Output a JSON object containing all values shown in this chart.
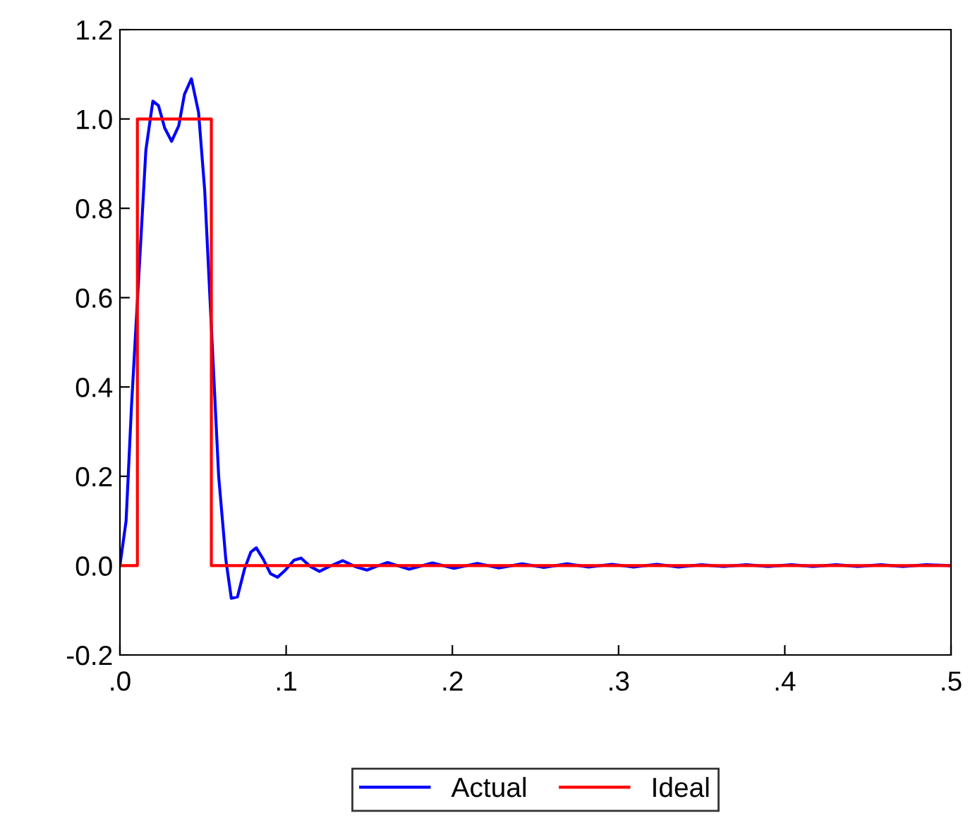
{
  "chart_data": {
    "type": "line",
    "xlim": [
      0,
      0.5
    ],
    "ylim": [
      -0.2,
      1.2
    ],
    "xticks": [
      {
        "value": 0,
        "label": ".0"
      },
      {
        "value": 0.1,
        "label": ".1"
      },
      {
        "value": 0.2,
        "label": ".2"
      },
      {
        "value": 0.3,
        "label": ".3"
      },
      {
        "value": 0.4,
        "label": ".4"
      },
      {
        "value": 0.5,
        "label": ".5"
      }
    ],
    "yticks": [
      {
        "value": -0.2,
        "label": "-0.2"
      },
      {
        "value": 0,
        "label": "0.0"
      },
      {
        "value": 0.2,
        "label": "0.2"
      },
      {
        "value": 0.4,
        "label": "0.4"
      },
      {
        "value": 0.6,
        "label": "0.6"
      },
      {
        "value": 0.8,
        "label": "0.8"
      },
      {
        "value": 1.0,
        "label": "1.0"
      },
      {
        "value": 1.2,
        "label": "1.2"
      }
    ],
    "grid": false,
    "legend": "bottom",
    "line_style": "solid",
    "marker": "none",
    "series": [
      {
        "name": "Actual",
        "color": "#0000ff",
        "x": [
          0,
          0.0037,
          0.007,
          0.0156,
          0.0198,
          0.0232,
          0.0269,
          0.0311,
          0.0354,
          0.0388,
          0.043,
          0.0473,
          0.051,
          0.0552,
          0.0594,
          0.0637,
          0.067,
          0.0707,
          0.075,
          0.0787,
          0.082,
          0.0863,
          0.0906,
          0.0948,
          0.099,
          0.1047,
          0.109,
          0.1146,
          0.12,
          0.126,
          0.134,
          0.1415,
          0.1486,
          0.1556,
          0.161,
          0.174,
          0.188,
          0.201,
          0.215,
          0.228,
          0.242,
          0.255,
          0.269,
          0.282,
          0.296,
          0.309,
          0.323,
          0.336,
          0.35,
          0.363,
          0.377,
          0.39,
          0.404,
          0.417,
          0.431,
          0.444,
          0.458,
          0.471,
          0.485,
          0.5
        ],
        "values": [
          0,
          0.1,
          0.36,
          0.93,
          1.04,
          1.03,
          0.98,
          0.95,
          0.985,
          1.055,
          1.09,
          1.015,
          0.84,
          0.52,
          0.2,
          0.014,
          -0.073,
          -0.07,
          -0.007,
          0.03,
          0.04,
          0.014,
          -0.018,
          -0.026,
          -0.012,
          0.012,
          0.017,
          -0.002,
          -0.013,
          -0.002,
          0.011,
          -0.002,
          -0.01,
          0,
          0.007,
          -0.008,
          0.006,
          -0.006,
          0.005,
          -0.005,
          0.004,
          -0.004,
          0.004,
          -0.003,
          0.003,
          -0.003,
          0.003,
          -0.003,
          0.002,
          -0.002,
          0.002,
          -0.002,
          0.002,
          -0.002,
          0.002,
          -0.002,
          0.002,
          -0.002,
          0.002,
          0
        ]
      },
      {
        "name": "Ideal",
        "color": "#ff0000",
        "x": [
          0,
          0.0105,
          0.0105,
          0.055,
          0.055,
          0.5
        ],
        "values": [
          0,
          0,
          1,
          1,
          0,
          0
        ]
      }
    ]
  }
}
